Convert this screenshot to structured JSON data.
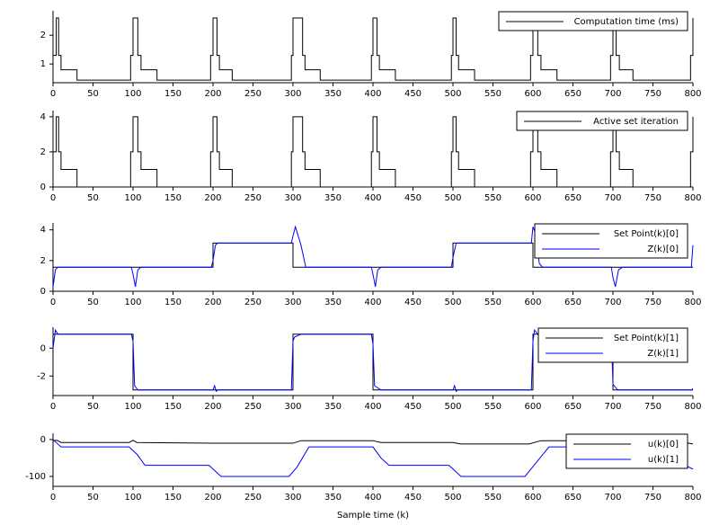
{
  "chart_data": [
    {
      "type": "line",
      "xlim": [
        0,
        800
      ],
      "xticks": [
        0,
        50,
        100,
        150,
        200,
        250,
        300,
        350,
        400,
        450,
        500,
        550,
        600,
        650,
        700,
        750,
        800
      ],
      "ylim": [
        0.35,
        2.85
      ],
      "yticks": [
        1,
        2
      ],
      "legend": "upper right",
      "series": [
        {
          "name": "Computation time (ms)",
          "color": "#000000",
          "x": [
            0,
            4,
            4,
            7,
            7,
            10,
            10,
            30,
            30,
            97,
            97,
            100,
            100,
            106,
            106,
            110,
            110,
            130,
            130,
            197,
            197,
            200,
            200,
            205,
            205,
            208,
            208,
            224,
            224,
            298,
            298,
            300,
            300,
            312,
            312,
            315,
            315,
            334,
            334,
            398,
            398,
            400,
            400,
            405,
            405,
            408,
            408,
            428,
            428,
            498,
            498,
            500,
            500,
            504,
            504,
            507,
            507,
            527,
            527,
            597,
            597,
            600,
            600,
            606,
            606,
            610,
            610,
            630,
            630,
            697,
            697,
            700,
            700,
            704,
            704,
            708,
            708,
            725,
            725,
            797,
            797,
            800,
            800
          ],
          "values": [
            1.3,
            1.3,
            2.6,
            2.6,
            1.3,
            1.3,
            0.8,
            0.8,
            0.44,
            0.44,
            1.3,
            1.3,
            2.6,
            2.6,
            1.3,
            1.3,
            0.8,
            0.8,
            0.44,
            0.44,
            1.3,
            1.3,
            2.6,
            2.6,
            1.3,
            1.3,
            0.8,
            0.8,
            0.44,
            0.44,
            1.3,
            1.3,
            2.6,
            2.6,
            1.3,
            1.3,
            0.8,
            0.8,
            0.44,
            0.44,
            1.3,
            1.3,
            2.6,
            2.6,
            1.3,
            1.3,
            0.8,
            0.8,
            0.44,
            0.44,
            1.3,
            1.3,
            2.6,
            2.6,
            1.3,
            1.3,
            0.8,
            0.8,
            0.44,
            0.44,
            1.3,
            1.3,
            2.6,
            2.6,
            1.3,
            1.3,
            0.8,
            0.8,
            0.44,
            0.44,
            1.3,
            1.3,
            2.6,
            2.6,
            1.3,
            1.3,
            0.8,
            0.8,
            0.44,
            0.44,
            1.3,
            1.3,
            2.6
          ]
        }
      ]
    },
    {
      "type": "line",
      "xlim": [
        0,
        800
      ],
      "xticks": [
        0,
        50,
        100,
        150,
        200,
        250,
        300,
        350,
        400,
        450,
        500,
        550,
        600,
        650,
        700,
        750,
        800
      ],
      "ylim": [
        0,
        4.35
      ],
      "yticks": [
        0,
        2,
        4
      ],
      "legend": "upper right",
      "series": [
        {
          "name": "Active set iteration",
          "color": "#000000",
          "x": [
            0,
            4,
            4,
            7,
            7,
            10,
            10,
            30,
            30,
            97,
            97,
            100,
            100,
            106,
            106,
            110,
            110,
            130,
            130,
            197,
            197,
            200,
            200,
            205,
            205,
            208,
            208,
            224,
            224,
            298,
            298,
            300,
            300,
            312,
            312,
            315,
            315,
            334,
            334,
            398,
            398,
            400,
            400,
            405,
            405,
            408,
            408,
            428,
            428,
            498,
            498,
            500,
            500,
            504,
            504,
            507,
            507,
            527,
            527,
            597,
            597,
            600,
            600,
            606,
            606,
            610,
            610,
            630,
            630,
            697,
            697,
            700,
            700,
            704,
            704,
            708,
            708,
            725,
            725,
            797,
            797,
            800,
            800
          ],
          "values": [
            2,
            2,
            4,
            4,
            2,
            2,
            1,
            1,
            0,
            0,
            2,
            2,
            4,
            4,
            2,
            2,
            1,
            1,
            0,
            0,
            2,
            2,
            4,
            4,
            2,
            2,
            1,
            1,
            0,
            0,
            2,
            2,
            4,
            4,
            2,
            2,
            1,
            1,
            0,
            0,
            2,
            2,
            4,
            4,
            2,
            2,
            1,
            1,
            0,
            0,
            2,
            2,
            4,
            4,
            2,
            2,
            1,
            1,
            0,
            0,
            2,
            2,
            4,
            4,
            2,
            2,
            1,
            1,
            0,
            0,
            2,
            2,
            4,
            4,
            2,
            2,
            1,
            1,
            0,
            0,
            2,
            2,
            4
          ]
        }
      ]
    },
    {
      "type": "line",
      "xlim": [
        0,
        800
      ],
      "xticks": [
        0,
        50,
        100,
        150,
        200,
        250,
        300,
        350,
        400,
        450,
        500,
        550,
        600,
        650,
        700,
        750,
        800
      ],
      "ylim": [
        0,
        4.45
      ],
      "yticks": [
        0,
        2,
        4
      ],
      "legend": "upper right",
      "series": [
        {
          "name": "Set Point(k)[0]",
          "color": "#000000",
          "x": [
            0,
            200,
            200,
            300,
            300,
            500,
            500,
            600,
            600,
            800
          ],
          "values": [
            1.57,
            1.57,
            3.14,
            3.14,
            1.57,
            1.57,
            3.14,
            3.14,
            1.57,
            1.57
          ]
        },
        {
          "name": "Z(k)[0]",
          "color": "#0000ff",
          "x": [
            0,
            3,
            6,
            98,
            100,
            103,
            106,
            110,
            198,
            200,
            203,
            206,
            298,
            300,
            303,
            310,
            316,
            398,
            400,
            403,
            406,
            410,
            498,
            500,
            504,
            598,
            600,
            603,
            608,
            612,
            698,
            700,
            703,
            707,
            712,
            798,
            800
          ],
          "values": [
            0.3,
            1.4,
            1.57,
            1.57,
            1.1,
            0.3,
            1.4,
            1.57,
            1.57,
            2.0,
            3.0,
            3.14,
            3.14,
            3.6,
            4.2,
            3.0,
            1.57,
            1.57,
            1.1,
            0.3,
            1.4,
            1.57,
            1.57,
            2.2,
            3.14,
            3.14,
            4.2,
            3.8,
            1.8,
            1.57,
            1.57,
            0.9,
            0.3,
            1.4,
            1.57,
            1.57,
            3.0
          ]
        }
      ]
    },
    {
      "type": "line",
      "xlim": [
        0,
        800
      ],
      "xticks": [
        0,
        50,
        100,
        150,
        200,
        250,
        300,
        350,
        400,
        450,
        500,
        550,
        600,
        650,
        700,
        750,
        800
      ],
      "ylim": [
        -3.4,
        1.5
      ],
      "yticks": [
        -2,
        0
      ],
      "legend": "upper right",
      "series": [
        {
          "name": "Set Point(k)[1]",
          "color": "#000000",
          "x": [
            0,
            100,
            100,
            300,
            300,
            400,
            400,
            600,
            600,
            700,
            700,
            800
          ],
          "values": [
            1,
            1,
            -3,
            -3,
            1,
            1,
            -3,
            -3,
            1,
            1,
            -3,
            -3
          ]
        },
        {
          "name": "Z(k)[1]",
          "color": "#0000ff",
          "x": [
            0,
            3,
            6,
            98,
            100,
            102,
            106,
            200,
            202,
            204,
            206,
            298,
            300,
            302,
            310,
            398,
            400,
            402,
            410,
            500,
            502,
            504,
            506,
            598,
            600,
            602,
            606,
            698,
            700,
            706,
            798,
            800
          ],
          "values": [
            0,
            1.3,
            1.0,
            1.0,
            0.5,
            -2.7,
            -3.0,
            -3.0,
            -2.7,
            -3.1,
            -3.0,
            -3.0,
            0.5,
            0.8,
            1.0,
            1.0,
            0.3,
            -2.7,
            -3.0,
            -3.0,
            -2.7,
            -3.1,
            -3.0,
            -3.0,
            0.5,
            1.3,
            1.0,
            1.0,
            -2.6,
            -3.0,
            -3.0,
            -2.9
          ]
        }
      ]
    },
    {
      "type": "line",
      "xlim": [
        0,
        800
      ],
      "xticks": [
        0,
        50,
        100,
        150,
        200,
        250,
        300,
        350,
        400,
        450,
        500,
        550,
        600,
        650,
        700,
        750,
        800
      ],
      "ylim": [
        -127,
        17
      ],
      "yticks": [
        -100,
        0
      ],
      "legend": "upper right",
      "xlabel": "Sample time (k)",
      "series": [
        {
          "name": "u(k)[0]",
          "color": "#000000",
          "x": [
            0,
            5,
            10,
            95,
            100,
            105,
            200,
            300,
            310,
            400,
            410,
            500,
            510,
            595,
            610,
            700,
            710,
            790,
            800
          ],
          "values": [
            -3,
            -2,
            -8,
            -8,
            -2,
            -8,
            -10,
            -10,
            -3,
            -3,
            -8,
            -8,
            -12,
            -12,
            -3,
            -3,
            -8,
            -8,
            -12
          ]
        },
        {
          "name": "u(k)[1]",
          "color": "#0000ff",
          "x": [
            0,
            5,
            10,
            95,
            105,
            115,
            195,
            210,
            295,
            305,
            320,
            400,
            410,
            420,
            495,
            510,
            590,
            605,
            620,
            700,
            705,
            715,
            790,
            800
          ],
          "values": [
            0,
            -10,
            -20,
            -20,
            -40,
            -70,
            -70,
            -100,
            -100,
            -75,
            -20,
            -20,
            -50,
            -70,
            -70,
            -100,
            -100,
            -60,
            -20,
            -20,
            -50,
            -70,
            -70,
            -80
          ]
        }
      ]
    }
  ]
}
